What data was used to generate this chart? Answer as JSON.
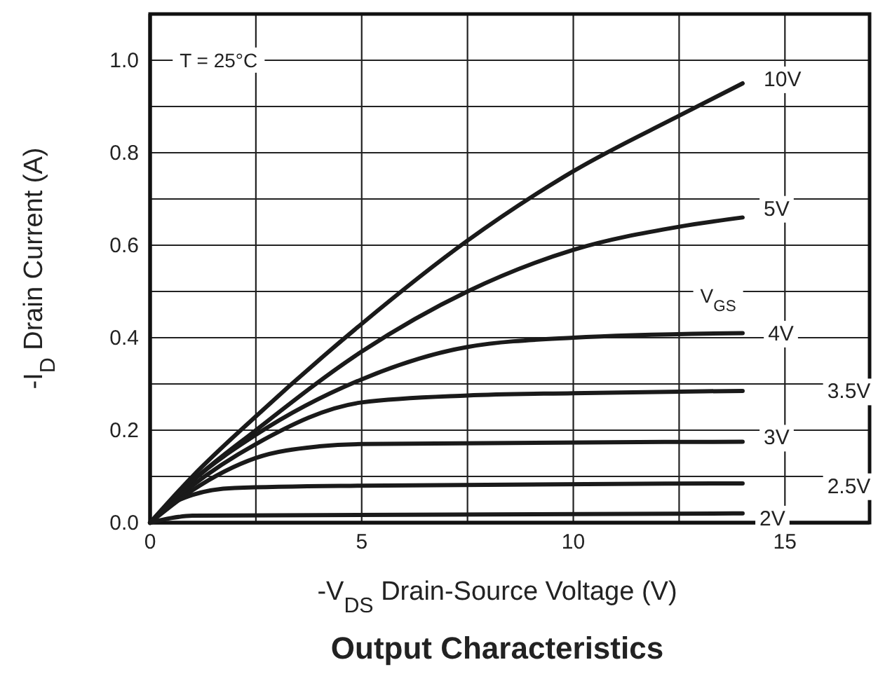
{
  "chart_data": {
    "type": "line",
    "title": "Output Characteristics",
    "xlabel": "-V$_{DS}$  Drain-Source Voltage (V)",
    "ylabel": "-I$_{D}$  Drain Current (A)",
    "annotations": [
      "T = 25°C",
      "V$_{GS}$"
    ],
    "xlim": [
      0,
      17
    ],
    "ylim": [
      0,
      1.1
    ],
    "xticks": [
      0,
      {
        "value": 2.5,
        "label": null
      },
      5,
      {
        "value": 7.5,
        "label": null
      },
      10,
      {
        "value": 12.5,
        "label": null
      },
      15
    ],
    "yticks": [
      {
        "value": 0,
        "label": "0.0"
      },
      {
        "value": 0.1,
        "label": null
      },
      {
        "value": 0.2,
        "label": "0.2"
      },
      {
        "value": 0.3,
        "label": null
      },
      {
        "value": 0.4,
        "label": "0.4"
      },
      {
        "value": 0.5,
        "label": null
      },
      {
        "value": 0.6,
        "label": "0.6"
      },
      {
        "value": 0.7,
        "label": null
      },
      {
        "value": 0.8,
        "label": "0.8"
      },
      {
        "value": 0.9,
        "label": null
      },
      {
        "value": 1.0,
        "label": "1.0"
      }
    ],
    "grid": true,
    "legend": false,
    "marker": "none",
    "line_style": "solid",
    "series": [
      {
        "name": "10V",
        "color": "#1a1a1a",
        "x": [
          0,
          1,
          2.5,
          5,
          7.5,
          10,
          12.5,
          14
        ],
        "values": [
          0,
          0.1,
          0.23,
          0.43,
          0.61,
          0.76,
          0.88,
          0.95
        ]
      },
      {
        "name": "5V",
        "color": "#1a1a1a",
        "x": [
          0,
          1,
          2.5,
          5,
          7.5,
          10,
          12.5,
          14
        ],
        "values": [
          0,
          0.09,
          0.2,
          0.37,
          0.5,
          0.59,
          0.64,
          0.66
        ]
      },
      {
        "name": "4V",
        "color": "#1a1a1a",
        "x": [
          0,
          1,
          2.5,
          5,
          7.5,
          10,
          14
        ],
        "values": [
          0,
          0.09,
          0.19,
          0.31,
          0.38,
          0.4,
          0.41
        ]
      },
      {
        "name": "3.5V",
        "color": "#1a1a1a",
        "x": [
          0,
          1,
          2.5,
          5,
          7.5,
          10,
          14
        ],
        "values": [
          0,
          0.08,
          0.17,
          0.26,
          0.275,
          0.28,
          0.285
        ]
      },
      {
        "name": "3V",
        "color": "#1a1a1a",
        "x": [
          0,
          1,
          2.5,
          4,
          5,
          14
        ],
        "values": [
          0,
          0.07,
          0.14,
          0.165,
          0.17,
          0.175
        ]
      },
      {
        "name": "2.5V",
        "color": "#1a1a1a",
        "x": [
          0,
          0.5,
          1,
          2,
          5,
          14
        ],
        "values": [
          0,
          0.04,
          0.06,
          0.075,
          0.08,
          0.085
        ]
      },
      {
        "name": "2V",
        "color": "#1a1a1a",
        "x": [
          0,
          0.5,
          1,
          14
        ],
        "values": [
          0,
          0.01,
          0.015,
          0.02
        ]
      }
    ]
  }
}
